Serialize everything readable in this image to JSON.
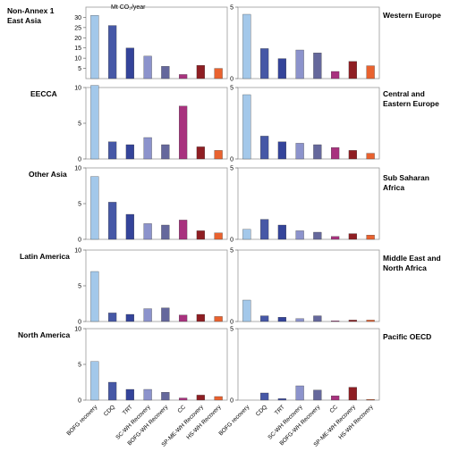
{
  "figure": {
    "unit_label": "Mt CO₂/year"
  },
  "chart_data": [
    {
      "type": "bar",
      "region": "Non-Annex 1\nEast Asia",
      "categories": [
        "BOFG recovery",
        "CDQ",
        "TRT",
        "SC-WH Recovery",
        "BOFG-WH Recovery",
        "CC",
        "SP-ME-WH Recovery",
        "HS-WH Recovery"
      ],
      "values": [
        31,
        26,
        15,
        11,
        6,
        2,
        6.5,
        5
      ],
      "ylim": [
        0,
        35
      ],
      "yticks": [
        "5",
        "10",
        "15",
        "20",
        "25",
        "30"
      ]
    },
    {
      "type": "bar",
      "region": "Western Europe",
      "categories": [
        "BOFG recovery",
        "CDQ",
        "TRT",
        "SC-WH Recovery",
        "BOFG-WH Recovery",
        "CC",
        "SP-ME-WH Recovery",
        "HS-WH Recovery"
      ],
      "values": [
        4.5,
        2.1,
        1.4,
        2.0,
        1.8,
        0.5,
        1.2,
        0.9
      ],
      "ylim": [
        0,
        5
      ],
      "yticks": [
        "0",
        "5"
      ]
    },
    {
      "type": "bar",
      "region": "EECCA",
      "categories": [
        "BOFG recovery",
        "CDQ",
        "TRT",
        "SC-WH Recovery",
        "BOFG-WH Recovery",
        "CC",
        "SP-ME-WH Recovery",
        "HS-WH Recovery"
      ],
      "values": [
        10.3,
        2.4,
        2.0,
        3.0,
        2.0,
        7.4,
        1.7,
        1.2
      ],
      "ylim": [
        0,
        10
      ],
      "yticks": [
        "0",
        "5",
        "10"
      ]
    },
    {
      "type": "bar",
      "region": "Central and\nEastern Europe",
      "categories": [
        "BOFG recovery",
        "CDQ",
        "TRT",
        "SC-WH Recovery",
        "BOFG-WH Recovery",
        "CC",
        "SP-ME-WH Recovery",
        "HS-WH Recovery"
      ],
      "values": [
        4.5,
        1.6,
        1.2,
        1.1,
        1.0,
        0.8,
        0.6,
        0.4
      ],
      "ylim": [
        0,
        5
      ],
      "yticks": [
        "0",
        "5"
      ]
    },
    {
      "type": "bar",
      "region": "Other Asia",
      "categories": [
        "BOFG recovery",
        "CDQ",
        "TRT",
        "SC-WH Recovery",
        "BOFG-WH Recovery",
        "CC",
        "SP-ME-WH Recovery",
        "HS-WH Recovery"
      ],
      "values": [
        8.8,
        5.2,
        3.5,
        2.2,
        2.0,
        2.7,
        1.2,
        0.9
      ],
      "ylim": [
        0,
        10
      ],
      "yticks": [
        "0",
        "5",
        "10"
      ]
    },
    {
      "type": "bar",
      "region": "Sub Saharan\nAfrica",
      "categories": [
        "BOFG recovery",
        "CDQ",
        "TRT",
        "SC-WH Recovery",
        "BOFG-WH Recovery",
        "CC",
        "SP-ME-WH Recovery",
        "HS-WH Recovery"
      ],
      "values": [
        0.7,
        1.4,
        1.0,
        0.6,
        0.5,
        0.2,
        0.4,
        0.3
      ],
      "ylim": [
        0,
        5
      ],
      "yticks": [
        "0",
        "5"
      ]
    },
    {
      "type": "bar",
      "region": "Latin America",
      "categories": [
        "BOFG recovery",
        "CDQ",
        "TRT",
        "SC-WH Recovery",
        "BOFG-WH Recovery",
        "CC",
        "SP-ME-WH Recovery",
        "HS-WH Recovery"
      ],
      "values": [
        7.0,
        1.2,
        1.0,
        1.8,
        1.9,
        0.9,
        1.0,
        0.7
      ],
      "ylim": [
        0,
        10
      ],
      "yticks": [
        "0",
        "5",
        "10"
      ]
    },
    {
      "type": "bar",
      "region": "Middle East and\nNorth Africa",
      "categories": [
        "BOFG recovery",
        "CDQ",
        "TRT",
        "SC-WH Recovery",
        "BOFG-WH Recovery",
        "CC",
        "SP-ME-WH Recovery",
        "HS-WH Recovery"
      ],
      "values": [
        1.5,
        0.4,
        0.3,
        0.2,
        0.4,
        0.05,
        0.1,
        0.1
      ],
      "ylim": [
        0,
        5
      ],
      "yticks": [
        "0",
        "5"
      ]
    },
    {
      "type": "bar",
      "region": "North America",
      "categories": [
        "BOFG recovery",
        "CDQ",
        "TRT",
        "SC-WH Recovery",
        "BOFG-WH Recovery",
        "CC",
        "SP-ME-WH Recovery",
        "HS-WH Recovery"
      ],
      "values": [
        5.4,
        2.5,
        1.5,
        1.5,
        1.1,
        0.3,
        0.7,
        0.5
      ],
      "ylim": [
        0,
        10
      ],
      "yticks": [
        "0",
        "5",
        "10"
      ]
    },
    {
      "type": "bar",
      "region": "Pacific OECD",
      "categories": [
        "BOFG recovery",
        "CDQ",
        "TRT",
        "SC-WH Recovery",
        "BOFG-WH Recovery",
        "CC",
        "SP-ME-WH Recovery",
        "HS-WH Recovery"
      ],
      "values": [
        0,
        0.5,
        0.1,
        1.0,
        0.7,
        0.3,
        0.9,
        0.05
      ],
      "ylim": [
        0,
        5
      ],
      "yticks": [
        "0",
        "5"
      ]
    }
  ],
  "bar_colors": [
    "#a3c8ea",
    "#4658a6",
    "#34449a",
    "#8c93cc",
    "#65689c",
    "#a8327e",
    "#8f1e23",
    "#e9622f"
  ]
}
